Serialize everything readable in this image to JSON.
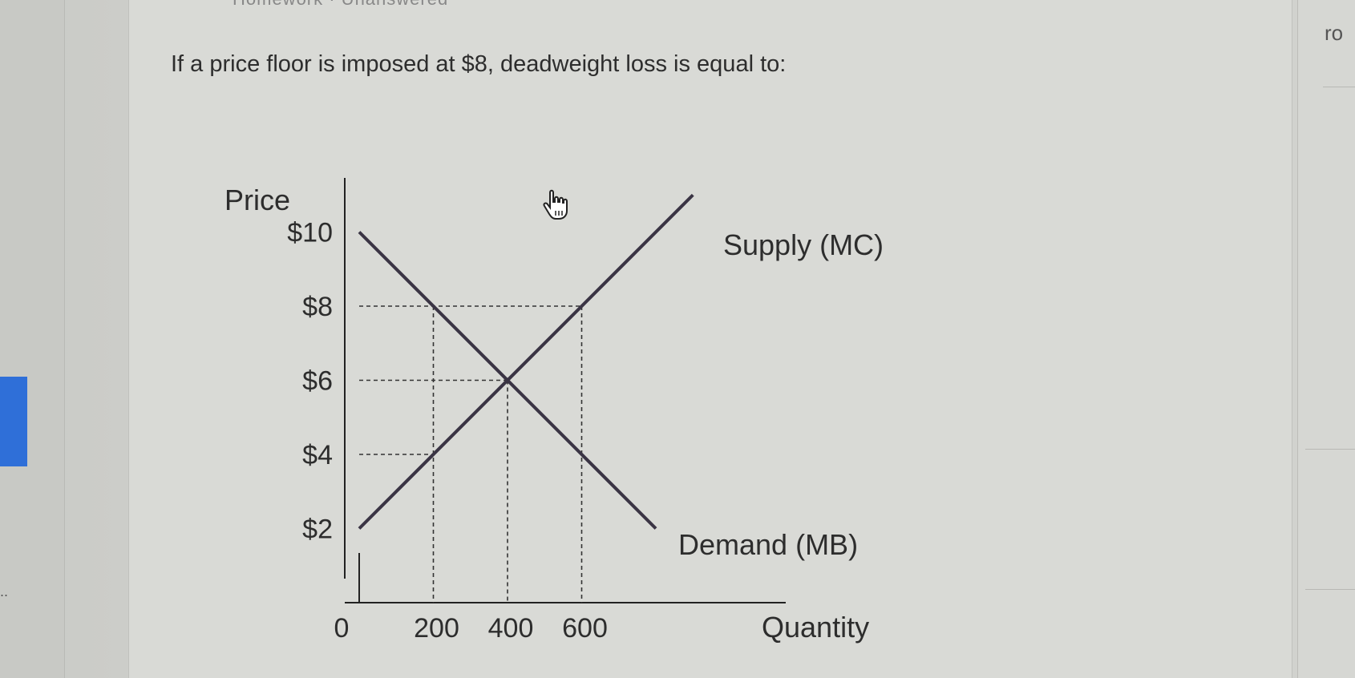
{
  "page": {
    "top_cut_text": "Homework · Unanswered",
    "question": "If a price floor is imposed at $8, deadweight loss is equal to:",
    "right_cut_text": "ro",
    "left_dots": ".."
  },
  "colors": {
    "curve": "#3a3444",
    "dash": "#333333",
    "text": "#2d2d2d",
    "accent": "#2f6fd8"
  },
  "chart_data": {
    "type": "line",
    "ylabel": "Price",
    "xlabel": "Quantity",
    "origin_label": "0",
    "xlim": [
      0,
      1000
    ],
    "ylim": [
      0,
      11
    ],
    "y_ticks": [
      {
        "value": 10,
        "label": "$10"
      },
      {
        "value": 8,
        "label": "$8"
      },
      {
        "value": 6,
        "label": "$6"
      },
      {
        "value": 4,
        "label": "$4"
      },
      {
        "value": 2,
        "label": "$2"
      }
    ],
    "x_ticks": [
      {
        "value": 200,
        "label": "200"
      },
      {
        "value": 400,
        "label": "400"
      },
      {
        "value": 600,
        "label": "600"
      }
    ],
    "series": [
      {
        "name": "Supply (MC)",
        "x": [
          0,
          900
        ],
        "y": [
          2,
          11
        ]
      },
      {
        "name": "Demand (MB)",
        "x": [
          0,
          800
        ],
        "y": [
          10,
          2
        ]
      }
    ],
    "reference_lines": [
      {
        "kind": "horizontal",
        "y": 8,
        "x_to": 600
      },
      {
        "kind": "horizontal",
        "y": 6,
        "x_to": 400
      },
      {
        "kind": "horizontal",
        "y": 4,
        "x_to": 200
      },
      {
        "kind": "vertical",
        "x": 200,
        "y_from": 8
      },
      {
        "kind": "vertical",
        "x": 400,
        "y_from": 6
      },
      {
        "kind": "vertical",
        "x": 600,
        "y_from": 8
      }
    ]
  },
  "cursor_icon": "hand-pointer-icon"
}
